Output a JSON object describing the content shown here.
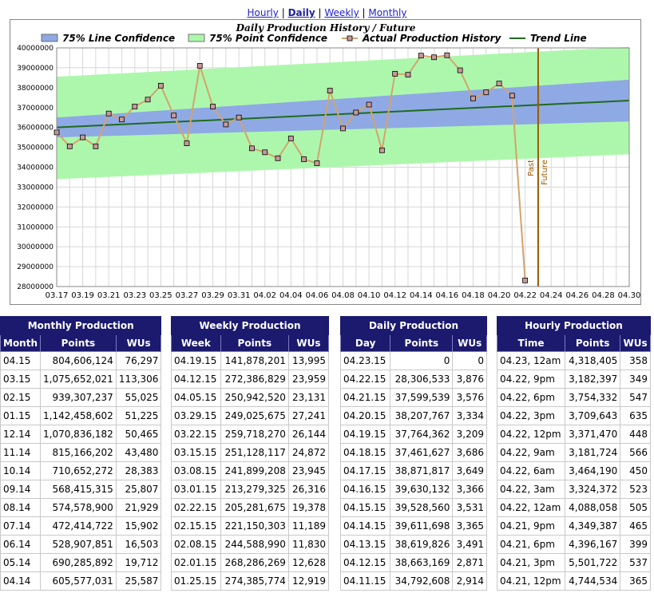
{
  "nav": {
    "hourly": "Hourly",
    "daily": "Daily",
    "weekly": "Weekly",
    "monthly": "Monthly",
    "sep": "|"
  },
  "chart_data": {
    "type": "line",
    "title": "Daily Production History / Future",
    "legend": [
      {
        "name": "75% Line Confidence",
        "color": "#8fa9e4",
        "kind": "band"
      },
      {
        "name": "75% Point Confidence",
        "color": "#adf7ad",
        "kind": "band"
      },
      {
        "name": "Actual Production History",
        "color": "#d4a36c",
        "kind": "line-marker"
      },
      {
        "name": "Trend Line",
        "color": "#1e6b1e",
        "kind": "line"
      }
    ],
    "x_start": "03.17",
    "x_end": "04.30",
    "x_ticks": [
      "03.17",
      "03.19",
      "03.21",
      "03.23",
      "03.25",
      "03.27",
      "03.29",
      "03.31",
      "04.02",
      "04.04",
      "04.06",
      "04.08",
      "04.10",
      "04.12",
      "04.14",
      "04.16",
      "04.18",
      "04.20",
      "04.22",
      "04.24",
      "04.26",
      "04.28",
      "04.30"
    ],
    "ylim": [
      28000000,
      40000000
    ],
    "y_ticks": [
      "28000000",
      "29000000",
      "30000000",
      "31000000",
      "32000000",
      "33000000",
      "34000000",
      "35000000",
      "36000000",
      "37000000",
      "38000000",
      "39000000",
      "40000000"
    ],
    "actual": {
      "dates": [
        "03.17",
        "03.18",
        "03.19",
        "03.20",
        "03.21",
        "03.22",
        "03.23",
        "03.24",
        "03.25",
        "03.26",
        "03.27",
        "03.28",
        "03.29",
        "03.30",
        "03.31",
        "04.01",
        "04.02",
        "04.03",
        "04.04",
        "04.05",
        "04.06",
        "04.07",
        "04.08",
        "04.09",
        "04.10",
        "04.11",
        "04.12",
        "04.13",
        "04.14",
        "04.15",
        "04.16",
        "04.17",
        "04.18",
        "04.19",
        "04.20",
        "04.21",
        "04.22"
      ],
      "values": [
        35750000,
        35050000,
        35500000,
        35050000,
        36700000,
        36400000,
        37050000,
        37400000,
        38100000,
        36600000,
        35200000,
        39100000,
        37050000,
        36150000,
        36500000,
        34950000,
        34750000,
        34450000,
        35450000,
        34400000,
        34200000,
        37850000,
        35950000,
        36750000,
        37150000,
        34850000,
        38700000,
        38650000,
        39611698,
        39528560,
        39630132,
        38871817,
        37461627,
        37764362,
        38207767,
        37599539,
        28306533
      ]
    },
    "trend": {
      "start": 36000000,
      "end": 37350000
    },
    "line_confidence": {
      "upper": [
        36500000,
        38400000
      ],
      "lower": [
        35500000,
        36300000
      ]
    },
    "point_confidence": {
      "upper": [
        38550000,
        40050000
      ],
      "lower": [
        33400000,
        34650000
      ]
    },
    "divider": {
      "date": "04.23",
      "past_label": "Past",
      "future_label": "Future"
    }
  },
  "tables": {
    "monthly": {
      "title": "Monthly Production",
      "cols": [
        "Month",
        "Points",
        "WUs"
      ],
      "rows": [
        [
          "04.15",
          "804,606,124",
          "76,297"
        ],
        [
          "03.15",
          "1,075,652,021",
          "113,306"
        ],
        [
          "02.15",
          "939,307,237",
          "55,025"
        ],
        [
          "01.15",
          "1,142,458,602",
          "51,225"
        ],
        [
          "12.14",
          "1,070,836,182",
          "50,465"
        ],
        [
          "11.14",
          "815,166,202",
          "43,480"
        ],
        [
          "10.14",
          "710,652,272",
          "28,383"
        ],
        [
          "09.14",
          "568,415,315",
          "25,807"
        ],
        [
          "08.14",
          "574,578,900",
          "21,929"
        ],
        [
          "07.14",
          "472,414,722",
          "15,902"
        ],
        [
          "06.14",
          "528,907,851",
          "16,503"
        ],
        [
          "05.14",
          "690,285,892",
          "19,712"
        ],
        [
          "04.14",
          "605,577,031",
          "25,587"
        ]
      ]
    },
    "weekly": {
      "title": "Weekly Production",
      "cols": [
        "Week",
        "Points",
        "WUs"
      ],
      "rows": [
        [
          "04.19.15",
          "141,878,201",
          "13,995"
        ],
        [
          "04.12.15",
          "272,386,829",
          "23,959"
        ],
        [
          "04.05.15",
          "250,942,520",
          "23,131"
        ],
        [
          "03.29.15",
          "249,025,675",
          "27,241"
        ],
        [
          "03.22.15",
          "259,718,270",
          "26,144"
        ],
        [
          "03.15.15",
          "251,128,117",
          "24,872"
        ],
        [
          "03.08.15",
          "241,899,208",
          "23,945"
        ],
        [
          "03.01.15",
          "213,279,325",
          "26,316"
        ],
        [
          "02.22.15",
          "205,281,675",
          "19,378"
        ],
        [
          "02.15.15",
          "221,150,303",
          "11,189"
        ],
        [
          "02.08.15",
          "244,588,990",
          "11,830"
        ],
        [
          "02.01.15",
          "268,286,269",
          "12,628"
        ],
        [
          "01.25.15",
          "274,385,774",
          "12,919"
        ]
      ]
    },
    "daily": {
      "title": "Daily Production",
      "cols": [
        "Day",
        "Points",
        "WUs"
      ],
      "rows": [
        [
          "04.23.15",
          "0",
          "0"
        ],
        [
          "04.22.15",
          "28,306,533",
          "3,876"
        ],
        [
          "04.21.15",
          "37,599,539",
          "3,576"
        ],
        [
          "04.20.15",
          "38,207,767",
          "3,334"
        ],
        [
          "04.19.15",
          "37,764,362",
          "3,209"
        ],
        [
          "04.18.15",
          "37,461,627",
          "3,686"
        ],
        [
          "04.17.15",
          "38,871,817",
          "3,649"
        ],
        [
          "04.16.15",
          "39,630,132",
          "3,366"
        ],
        [
          "04.15.15",
          "39,528,560",
          "3,531"
        ],
        [
          "04.14.15",
          "39,611,698",
          "3,365"
        ],
        [
          "04.13.15",
          "38,619,826",
          "3,491"
        ],
        [
          "04.12.15",
          "38,663,169",
          "2,871"
        ],
        [
          "04.11.15",
          "34,792,608",
          "2,914"
        ]
      ]
    },
    "hourly": {
      "title": "Hourly Production",
      "cols": [
        "Time",
        "Points",
        "WUs"
      ],
      "rows": [
        [
          "04.23, 12am",
          "4,318,405",
          "358"
        ],
        [
          "04.22, 9pm",
          "3,182,397",
          "349"
        ],
        [
          "04.22, 6pm",
          "3,754,332",
          "547"
        ],
        [
          "04.22, 3pm",
          "3,709,643",
          "635"
        ],
        [
          "04.22, 12pm",
          "3,371,470",
          "448"
        ],
        [
          "04.22, 9am",
          "3,181,724",
          "566"
        ],
        [
          "04.22, 6am",
          "3,464,190",
          "450"
        ],
        [
          "04.22, 3am",
          "3,324,372",
          "523"
        ],
        [
          "04.22, 12am",
          "4,088,058",
          "505"
        ],
        [
          "04.21, 9pm",
          "4,349,387",
          "465"
        ],
        [
          "04.21, 6pm",
          "4,396,167",
          "399"
        ],
        [
          "04.21, 3pm",
          "5,501,722",
          "537"
        ],
        [
          "04.21, 12pm",
          "4,744,534",
          "365"
        ]
      ]
    }
  }
}
